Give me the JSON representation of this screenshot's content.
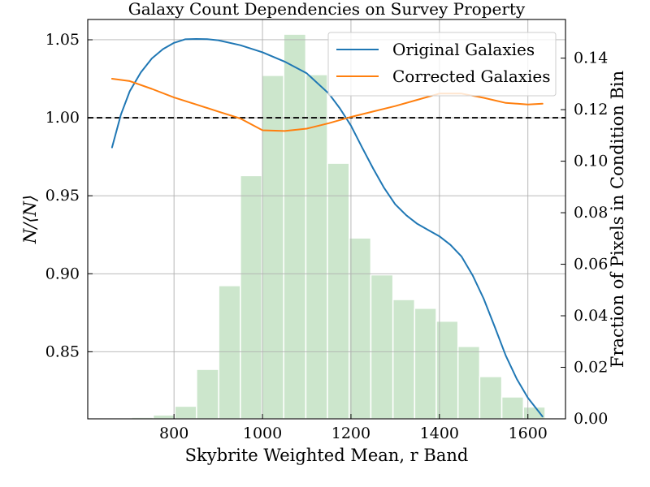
{
  "chart_data": {
    "type": "line",
    "title": "Galaxy Count Dependencies on Survey Property",
    "xlabel": "Skybrite Weighted Mean, r Band",
    "ylabel": "N/⟨N⟩",
    "y2label": "Fraction of Pixels in Condition Bin",
    "xlim": [
      605,
      1685
    ],
    "ylim": [
      0.807,
      1.063
    ],
    "y2lim": [
      0,
      0.155
    ],
    "xticks": [
      800,
      1000,
      1200,
      1400,
      1600
    ],
    "yticks": [
      0.85,
      0.9,
      0.95,
      1.0,
      1.05
    ],
    "y2ticks": [
      0.0,
      0.02,
      0.04,
      0.06,
      0.08,
      0.1,
      0.12,
      0.14
    ],
    "xtick_labels": [
      "800",
      "1000",
      "1200",
      "1400",
      "1600"
    ],
    "ytick_labels": [
      "0.85",
      "0.90",
      "0.95",
      "1.00",
      "1.05"
    ],
    "y2tick_labels": [
      "0.00",
      "0.02",
      "0.04",
      "0.06",
      "0.08",
      "0.10",
      "0.12",
      "0.14"
    ],
    "grid": true,
    "reference_line": {
      "y": 1.0,
      "style": "dashed",
      "color": "#000000"
    },
    "legend_position": "top-right",
    "series": [
      {
        "name": "Original Galaxies",
        "color": "#1f77b4",
        "x": [
          660,
          680,
          700,
          725,
          750,
          775,
          800,
          825,
          850,
          875,
          900,
          950,
          1000,
          1050,
          1100,
          1150,
          1175,
          1200,
          1225,
          1250,
          1275,
          1300,
          1325,
          1350,
          1375,
          1400,
          1425,
          1450,
          1475,
          1500,
          1525,
          1550,
          1575,
          1600,
          1633
        ],
        "y": [
          0.981,
          1.002,
          1.017,
          1.029,
          1.038,
          1.044,
          1.048,
          1.0503,
          1.0505,
          1.0504,
          1.0497,
          1.0465,
          1.042,
          1.036,
          1.0285,
          1.0155,
          1.006,
          0.995,
          0.981,
          0.9675,
          0.955,
          0.9445,
          0.9375,
          0.932,
          0.928,
          0.924,
          0.9185,
          0.911,
          0.899,
          0.884,
          0.866,
          0.8475,
          0.8325,
          0.8205,
          0.8085
        ]
      },
      {
        "name": "Corrected Galaxies",
        "color": "#ff7f0e",
        "x": [
          660,
          700,
          750,
          800,
          850,
          900,
          950,
          1000,
          1050,
          1100,
          1150,
          1200,
          1250,
          1300,
          1350,
          1400,
          1450,
          1500,
          1550,
          1600,
          1633
        ],
        "y": [
          1.025,
          1.0235,
          1.0185,
          1.013,
          1.0085,
          1.004,
          0.9995,
          0.992,
          0.9915,
          0.993,
          0.9965,
          1.0005,
          1.004,
          1.0075,
          1.0115,
          1.0155,
          1.0155,
          1.0128,
          1.0095,
          1.0085,
          1.009
        ]
      }
    ],
    "histogram": {
      "axis": "secondary",
      "color": "#cce6cc",
      "bin_edges": [
        605,
        654,
        704,
        753,
        802,
        851,
        901,
        950,
        999,
        1048,
        1098,
        1147,
        1196,
        1245,
        1295,
        1344,
        1393,
        1442,
        1491,
        1541,
        1590,
        1639
      ],
      "values": [
        0.0,
        0.0002,
        0.0006,
        0.0015,
        0.0049,
        0.0192,
        0.0517,
        0.0944,
        0.1333,
        0.1493,
        0.1336,
        0.0992,
        0.0702,
        0.0559,
        0.0463,
        0.0429,
        0.0379,
        0.0281,
        0.0164,
        0.0085,
        0.0046
      ]
    }
  }
}
